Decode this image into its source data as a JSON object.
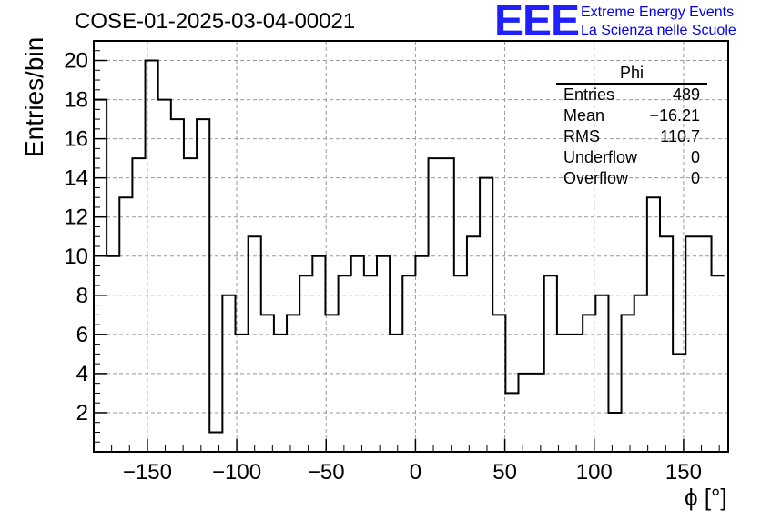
{
  "header": {
    "title": "COSE-01-2025-03-04-00021",
    "logo_text": "EEE",
    "logo_line1": "Extreme Energy Events",
    "logo_line2": "La Scienza nelle Scuole"
  },
  "stats_box": {
    "name": "Phi",
    "rows": [
      {
        "label": "Entries",
        "value": "489"
      },
      {
        "label": "Mean",
        "value": "−16.21"
      },
      {
        "label": "RMS",
        "value": "110.7"
      },
      {
        "label": "Underflow",
        "value": "0"
      },
      {
        "label": "Overflow",
        "value": "0"
      }
    ]
  },
  "colors": {
    "line": "#000000",
    "grid": "#999999",
    "logo": "#1f1fff"
  },
  "chart_data": {
    "type": "bar",
    "style": "step-histogram",
    "title": "COSE-01-2025-03-04-00021",
    "xlabel": "ϕ [°]",
    "ylabel": "Entries/bin",
    "xlim": [
      -180,
      175
    ],
    "ylim": [
      0,
      21
    ],
    "grid": true,
    "bin_width": 7.2,
    "bin_edges_start": -180,
    "x_ticks": [
      -150,
      -100,
      -50,
      0,
      50,
      100,
      150
    ],
    "x_tick_labels": [
      "−150",
      "−100",
      "−50",
      "0",
      "50",
      "100",
      "150"
    ],
    "y_ticks": [
      2,
      4,
      6,
      8,
      10,
      12,
      14,
      16,
      18,
      20
    ],
    "y_tick_labels": [
      "2",
      "4",
      "6",
      "8",
      "10",
      "12",
      "14",
      "16",
      "18",
      "20"
    ],
    "values": [
      18,
      10,
      13,
      15,
      20,
      18,
      17,
      15,
      17,
      1,
      8,
      6,
      11,
      7,
      6,
      7,
      9,
      10,
      7,
      9,
      10,
      9,
      10,
      6,
      9,
      10,
      15,
      15,
      9,
      11,
      14,
      7,
      3,
      4,
      4,
      9,
      6,
      6,
      7,
      8,
      2,
      7,
      8,
      13,
      11,
      5,
      11,
      11,
      9
    ]
  }
}
